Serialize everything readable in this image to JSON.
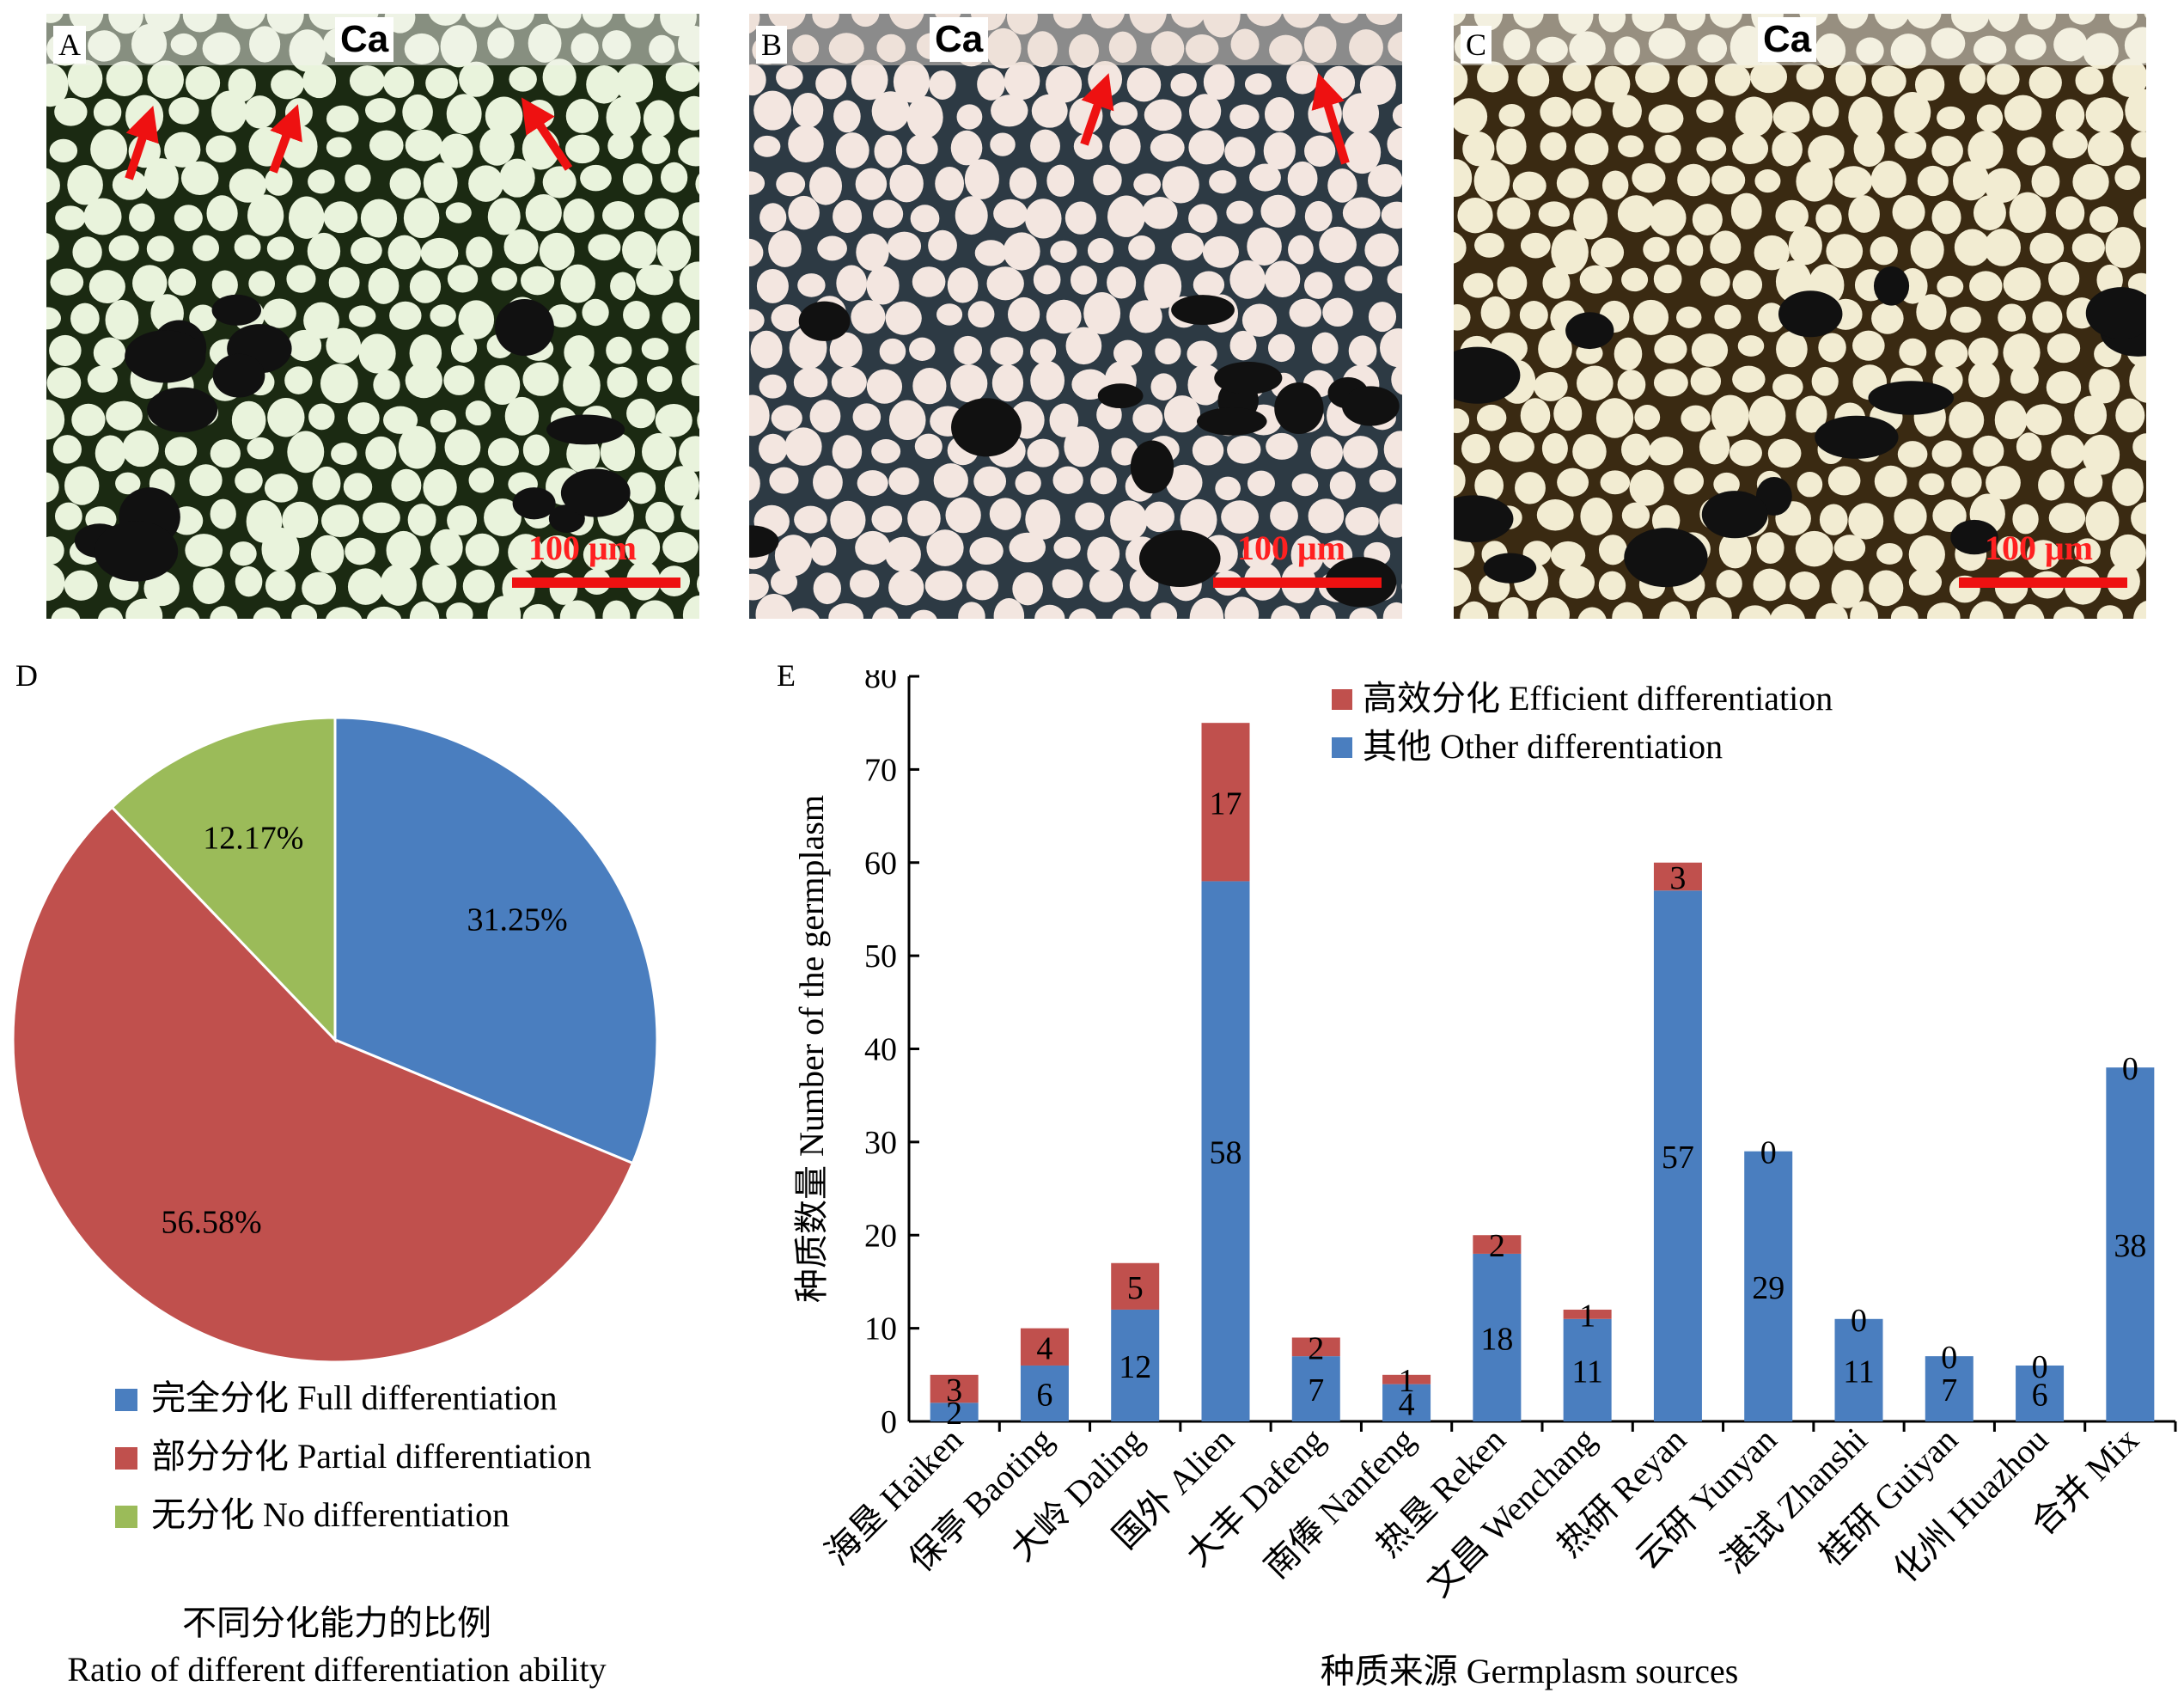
{
  "panels": {
    "A": {
      "label": "A",
      "tissue_label": "Ca",
      "scale_text": "100 μm"
    },
    "B": {
      "label": "B",
      "tissue_label": "Ca",
      "scale_text": "100 μm"
    },
    "C": {
      "label": "C",
      "tissue_label": "Ca",
      "scale_text": "100 μm"
    },
    "D": {
      "label": "D"
    },
    "E": {
      "label": "E"
    }
  },
  "colors": {
    "blue": "#4a7ebf",
    "red": "#c0504d",
    "green": "#9bbb59",
    "arrow": "#ee1111",
    "photoA": "#e9f3dc",
    "photoB": "#f3e6e0",
    "photoC": "#f2ecd2"
  },
  "chart_data": [
    {
      "type": "pie",
      "title": "不同分化能力的比例",
      "subtitle": "Ratio of different differentiation ability",
      "slices": [
        {
          "name": "完全分化  Full differentiation",
          "value": 31.25,
          "label": "31.25%",
          "color": "#4a7ebf"
        },
        {
          "name": "部分分化  Partial differentiation",
          "value": 56.58,
          "label": "56.58%",
          "color": "#c0504d"
        },
        {
          "name": "无分化  No differentiation",
          "value": 12.17,
          "label": "12.17%",
          "color": "#9bbb59"
        }
      ],
      "legend_position": "bottom"
    },
    {
      "type": "bar",
      "stacked": true,
      "xlabel": "种质来源  Germplasm sources",
      "ylabel": "种质数量  Number of the germplasm",
      "ylim": [
        0,
        80
      ],
      "yticks": [
        0,
        10,
        20,
        30,
        40,
        50,
        60,
        70,
        80
      ],
      "categories": [
        "海垦  Haiken",
        "保亭  Baoting",
        "大岭  Daling",
        "国外  Alien",
        "大丰  Dafeng",
        "南俸  Nanfeng",
        "热垦  Reken",
        "文昌  Wenchang",
        "热研  Reyan",
        "云研  Yunyan",
        "湛试  Zhanshi",
        "桂研  Guiyan",
        "化州  Huazhou",
        "合并  Mix"
      ],
      "series": [
        {
          "name": "其他  Other differentiation",
          "color": "#4a7ebf",
          "values": [
            2,
            6,
            12,
            58,
            7,
            4,
            18,
            11,
            57,
            29,
            11,
            7,
            6,
            38
          ]
        },
        {
          "name": "高效分化  Efficient differentiation",
          "color": "#c0504d",
          "values": [
            3,
            4,
            5,
            17,
            2,
            1,
            2,
            1,
            3,
            0,
            0,
            0,
            0,
            0
          ]
        }
      ],
      "legend_position": "top-right",
      "grid": false
    }
  ]
}
